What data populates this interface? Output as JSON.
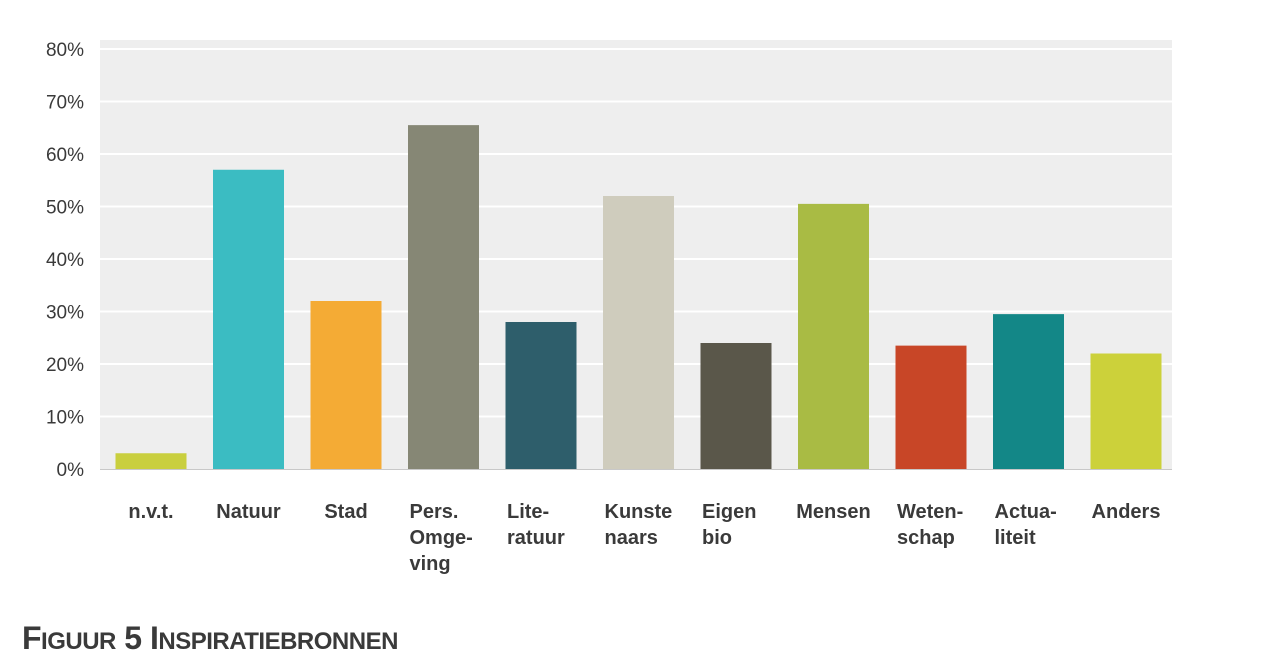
{
  "chart_data": {
    "type": "bar",
    "categories": [
      [
        "n.v.t."
      ],
      [
        "Natuur"
      ],
      [
        "Stad"
      ],
      [
        "Pers.",
        "Omge-",
        "ving"
      ],
      [
        "Lite-",
        "ratuur"
      ],
      [
        "Kunste",
        "naars"
      ],
      [
        "Eigen",
        "bio"
      ],
      [
        "Mensen"
      ],
      [
        "Weten-",
        "schap"
      ],
      [
        "Actua-",
        "liteit"
      ],
      [
        "Anders"
      ]
    ],
    "values": [
      3,
      57,
      32,
      65.5,
      28,
      52,
      24,
      50.5,
      23.5,
      29.5,
      22
    ],
    "colors": [
      "#c9cf3e",
      "#3bbcc2",
      "#f4ab35",
      "#868775",
      "#2e5e6b",
      "#cfccbd",
      "#5a574a",
      "#a9bb44",
      "#c84627",
      "#138787",
      "#ccd13a"
    ],
    "ylim": [
      0,
      80
    ],
    "yticks": [
      "0%",
      "10%",
      "20%",
      "30%",
      "40%",
      "50%",
      "60%",
      "70%",
      "80%"
    ],
    "grid": true,
    "plot_background": "#eeeeee",
    "legend": "none"
  },
  "caption": {
    "parts": [
      {
        "text": "F",
        "small": false
      },
      {
        "text": "IGUUR",
        "small": true
      },
      {
        "text": " 5 I",
        "small": false
      },
      {
        "text": "NSPIRATIEBRONNEN",
        "small": true
      }
    ]
  }
}
